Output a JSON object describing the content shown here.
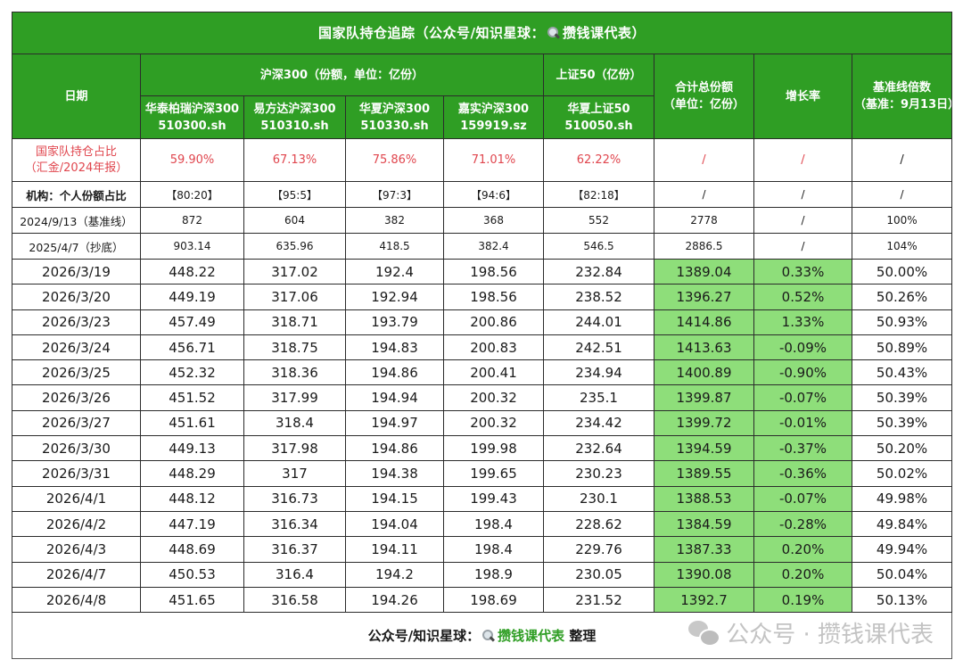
{
  "title": {
    "prefix": "国家队持仓追踪（公众号/知识星球：",
    "brand": "攒钱课代表",
    "suffix": "）",
    "icon": "magnifier-icon"
  },
  "headers": {
    "date": "日期",
    "group_hs300": "沪深300（份额，单位：亿份）",
    "group_sz50": "上证50（亿份）",
    "total": "合计总份额",
    "total_unit": "（单位：亿份）",
    "growth": "增长率",
    "baseline_multiple": "基准线倍数",
    "baseline_note": "（基准：9月13日）",
    "funds": [
      {
        "name": "华泰柏瑞沪深300",
        "code": "510300.sh"
      },
      {
        "name": "易方达沪深300",
        "code": "510310.sh"
      },
      {
        "name": "华夏沪深300",
        "code": "510330.sh"
      },
      {
        "name": "嘉实沪深300",
        "code": "159919.sz"
      },
      {
        "name": "华夏上证50",
        "code": "510050.sh"
      }
    ]
  },
  "info_rows": {
    "holding_ratio": {
      "label_line1": "国家队持仓占比",
      "label_line2": "（汇金/2024年报）",
      "values": [
        "59.90%",
        "67.13%",
        "75.86%",
        "71.01%",
        "62.22%"
      ],
      "total": "/",
      "growth": "/",
      "multiple": "/"
    },
    "inst_ratio": {
      "label": "机构：个人份额占比",
      "values": [
        "【80:20】",
        "【95:5】",
        "【97:3】",
        "【94:6】",
        "【82:18】"
      ],
      "total": "/",
      "growth": "/",
      "multiple": "/"
    },
    "baseline": {
      "label": "2024/9/13（基准线）",
      "values": [
        "872",
        "604",
        "382",
        "368",
        "552"
      ],
      "total": "2778",
      "growth": "/",
      "multiple": "100%"
    },
    "bottom": {
      "label": "2025/4/7（抄底）",
      "values": [
        "903.14",
        "635.96",
        "418.5",
        "382.4",
        "546.5"
      ],
      "total": "2886.5",
      "growth": "/",
      "multiple": "104%"
    }
  },
  "rows": [
    {
      "date": "2026/3/19",
      "v": [
        "448.22",
        "317.02",
        "192.4",
        "198.56",
        "232.84"
      ],
      "total": "1389.04",
      "growth": "0.33%",
      "multiple": "50.00%"
    },
    {
      "date": "2026/3/20",
      "v": [
        "449.19",
        "317.06",
        "192.94",
        "198.56",
        "238.52"
      ],
      "total": "1396.27",
      "growth": "0.52%",
      "multiple": "50.26%"
    },
    {
      "date": "2026/3/23",
      "v": [
        "457.49",
        "318.71",
        "193.79",
        "200.86",
        "244.01"
      ],
      "total": "1414.86",
      "growth": "1.33%",
      "multiple": "50.93%"
    },
    {
      "date": "2026/3/24",
      "v": [
        "456.71",
        "318.75",
        "194.83",
        "200.83",
        "242.51"
      ],
      "total": "1413.63",
      "growth": "-0.09%",
      "multiple": "50.89%"
    },
    {
      "date": "2026/3/25",
      "v": [
        "452.32",
        "318.36",
        "194.86",
        "200.41",
        "234.94"
      ],
      "total": "1400.89",
      "growth": "-0.90%",
      "multiple": "50.43%"
    },
    {
      "date": "2026/3/26",
      "v": [
        "451.52",
        "317.99",
        "194.94",
        "200.32",
        "235.1"
      ],
      "total": "1399.87",
      "growth": "-0.07%",
      "multiple": "50.39%"
    },
    {
      "date": "2026/3/27",
      "v": [
        "451.61",
        "318.4",
        "194.97",
        "200.32",
        "234.42"
      ],
      "total": "1399.72",
      "growth": "-0.01%",
      "multiple": "50.39%"
    },
    {
      "date": "2026/3/30",
      "v": [
        "449.13",
        "317.98",
        "194.86",
        "199.98",
        "232.64"
      ],
      "total": "1394.59",
      "growth": "-0.37%",
      "multiple": "50.20%"
    },
    {
      "date": "2026/3/31",
      "v": [
        "448.29",
        "317",
        "194.38",
        "199.65",
        "230.23"
      ],
      "total": "1389.55",
      "growth": "-0.36%",
      "multiple": "50.02%"
    },
    {
      "date": "2026/4/1",
      "v": [
        "448.12",
        "316.73",
        "194.15",
        "199.43",
        "230.1"
      ],
      "total": "1388.53",
      "growth": "-0.07%",
      "multiple": "49.98%"
    },
    {
      "date": "2026/4/2",
      "v": [
        "447.19",
        "316.34",
        "194.04",
        "198.4",
        "228.62"
      ],
      "total": "1384.59",
      "growth": "-0.28%",
      "multiple": "49.84%"
    },
    {
      "date": "2026/4/3",
      "v": [
        "448.69",
        "316.37",
        "194.11",
        "198.4",
        "229.76"
      ],
      "total": "1387.33",
      "growth": "0.20%",
      "multiple": "49.94%"
    },
    {
      "date": "2026/4/7",
      "v": [
        "450.53",
        "316.4",
        "194.2",
        "198.9",
        "230.05"
      ],
      "total": "1390.08",
      "growth": "0.20%",
      "multiple": "50.04%"
    },
    {
      "date": "2026/4/8",
      "v": [
        "451.65",
        "316.58",
        "194.26",
        "198.69",
        "231.52"
      ],
      "total": "1392.7",
      "growth": "0.19%",
      "multiple": "50.13%"
    }
  ],
  "footer": {
    "prefix": "公众号/知识星球：",
    "brand": "攒钱课代表",
    "suffix": " 整理",
    "watermark": "公众号 · 攒钱课代表"
  },
  "colors": {
    "header_green": "#2f9e24",
    "highlight_green": "#8ede7a",
    "red_text": "#e0464e",
    "brand_green": "#2f9e24"
  }
}
